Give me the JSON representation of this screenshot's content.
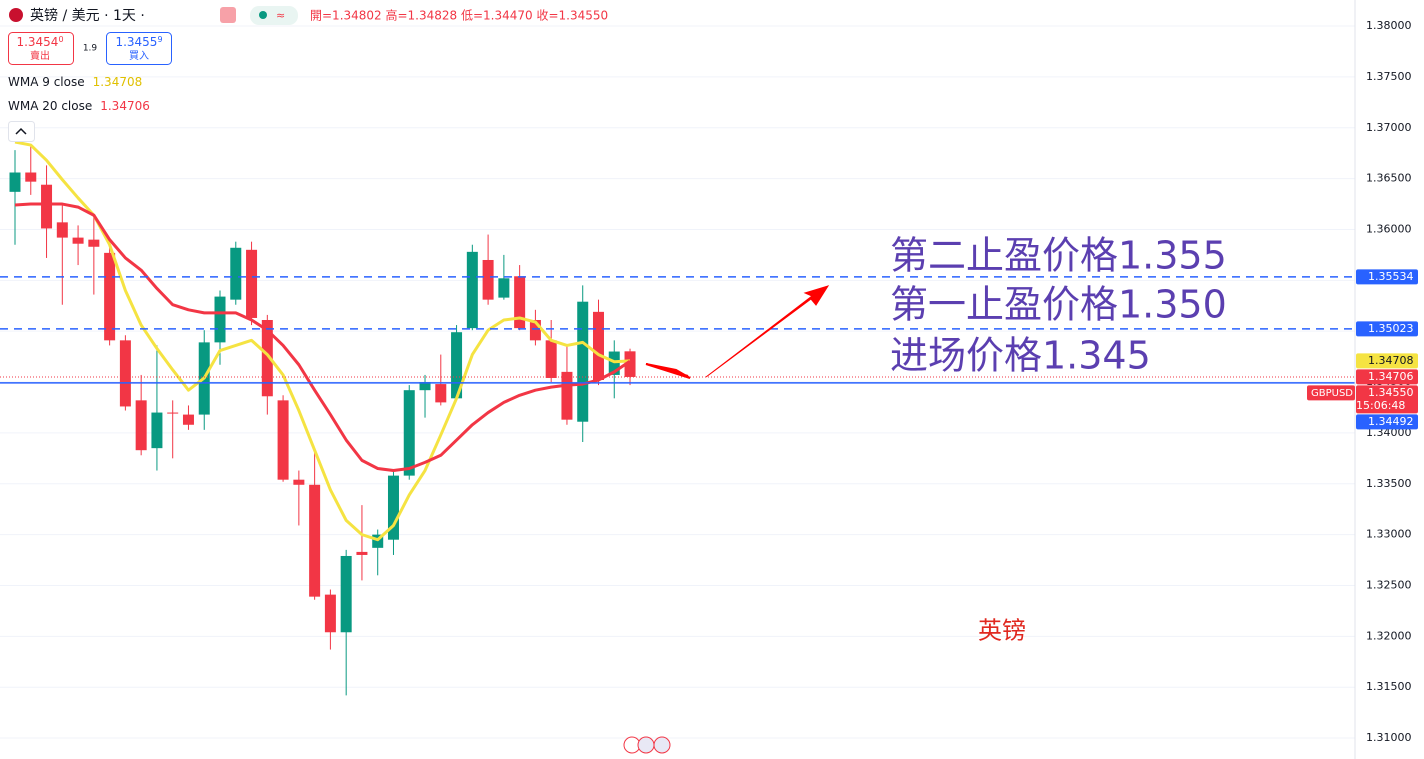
{
  "chart_data": {
    "type": "candlestick",
    "symbol_title": "英镑 / 美元 · 1天 ·",
    "ohlc_text": "開=1.34802  高=1.34828  低=1.34470  收=1.34550",
    "sell": {
      "price": "1.3454",
      "digit": "0",
      "label": "賣出"
    },
    "spread": "1.9",
    "buy": {
      "price": "1.3455",
      "digit": "9",
      "label": "買入"
    },
    "ylim": [
      1.30794,
      1.38256
    ],
    "yticks": [
      {
        "value": 1.31,
        "label": "1.31000"
      },
      {
        "value": 1.315,
        "label": "1.31500"
      },
      {
        "value": 1.32,
        "label": "1.32000"
      },
      {
        "value": 1.325,
        "label": "1.32500"
      },
      {
        "value": 1.33,
        "label": "1.33000"
      },
      {
        "value": 1.335,
        "label": "1.33500"
      },
      {
        "value": 1.34,
        "label": "1.34000"
      },
      {
        "value": 1.345,
        "label": "1.34500"
      },
      {
        "value": 1.35,
        "label": "1.35000"
      },
      {
        "value": 1.355,
        "label": "1.35500"
      },
      {
        "value": 1.36,
        "label": "1.36000"
      },
      {
        "value": 1.365,
        "label": "1.36500"
      },
      {
        "value": 1.37,
        "label": "1.37000"
      },
      {
        "value": 1.375,
        "label": "1.37500"
      },
      {
        "value": 1.38,
        "label": "1.38000"
      }
    ],
    "grid": true,
    "up_color": "#089981",
    "down_color": "#f23645",
    "open": [
      1.3637,
      1.3656,
      1.3644,
      1.3607,
      1.3592,
      1.359,
      1.3577,
      1.3491,
      1.3432,
      1.3385,
      1.342,
      1.3418,
      1.3418,
      1.3489,
      1.3531,
      1.358,
      1.3511,
      1.3432,
      1.3354,
      1.3349,
      1.3241,
      1.3204,
      1.3283,
      1.3287,
      1.3295,
      1.3358,
      1.3442,
      1.3448,
      1.3434,
      1.3503,
      1.357,
      1.3533,
      1.3554,
      1.3511,
      1.3491,
      1.346,
      1.3411,
      1.3519,
      1.3457,
      1.34802
    ],
    "high": [
      1.3678,
      1.3683,
      1.3663,
      1.3624,
      1.3604,
      1.3614,
      1.3585,
      1.3496,
      1.3457,
      1.3486,
      1.3432,
      1.3427,
      1.3501,
      1.354,
      1.3588,
      1.3588,
      1.3516,
      1.3437,
      1.3363,
      1.3383,
      1.3246,
      1.3285,
      1.3329,
      1.3305,
      1.3363,
      1.3447,
      1.3457,
      1.3477,
      1.3506,
      1.3585,
      1.3595,
      1.3575,
      1.3565,
      1.3521,
      1.3511,
      1.3486,
      1.3545,
      1.3531,
      1.3491,
      1.34828
    ],
    "low": [
      1.3585,
      1.3634,
      1.3572,
      1.3526,
      1.3565,
      1.3536,
      1.3486,
      1.3422,
      1.3378,
      1.3363,
      1.3375,
      1.3403,
      1.3403,
      1.3467,
      1.3526,
      1.3506,
      1.3418,
      1.3352,
      1.3309,
      1.3236,
      1.3187,
      1.3142,
      1.3255,
      1.326,
      1.328,
      1.3354,
      1.3415,
      1.3427,
      1.3432,
      1.3501,
      1.3526,
      1.3531,
      1.3501,
      1.3486,
      1.345,
      1.3408,
      1.3391,
      1.3447,
      1.3434,
      1.3447
    ],
    "close": [
      1.3656,
      1.3647,
      1.3601,
      1.3592,
      1.3586,
      1.3583,
      1.3491,
      1.3426,
      1.3383,
      1.342,
      1.3419,
      1.3408,
      1.3489,
      1.3534,
      1.3582,
      1.3513,
      1.3436,
      1.3354,
      1.3349,
      1.3239,
      1.3204,
      1.3279,
      1.328,
      1.33,
      1.3358,
      1.3442,
      1.345,
      1.343,
      1.3499,
      1.3578,
      1.3531,
      1.3552,
      1.3503,
      1.3491,
      1.3454,
      1.3413,
      1.3529,
      1.3452,
      1.348,
      1.3455
    ],
    "series": [
      {
        "name": "WMA 9 close",
        "color": "#f5e342",
        "tag_text": "#131722",
        "values": [
          1.3686,
          1.3683,
          1.3668,
          1.3649,
          1.3631,
          1.3614,
          1.3585,
          1.354,
          1.3506,
          1.3483,
          1.3462,
          1.3442,
          1.3454,
          1.3481,
          1.3486,
          1.3491,
          1.3477,
          1.3457,
          1.3422,
          1.3383,
          1.3344,
          1.3314,
          1.33,
          1.3295,
          1.3309,
          1.3339,
          1.3363,
          1.3398,
          1.3434,
          1.3477,
          1.3501,
          1.3511,
          1.3513,
          1.3509,
          1.3491,
          1.3486,
          1.3489,
          1.3477,
          1.347,
          1.34708
        ]
      },
      {
        "name": "WMA 20 close",
        "color": "#f23645",
        "tag_text": "#ffffff",
        "values": [
          1.3624,
          1.3625,
          1.3625,
          1.3625,
          1.3622,
          1.3614,
          1.359,
          1.3572,
          1.356,
          1.3542,
          1.3526,
          1.3521,
          1.3518,
          1.3518,
          1.3518,
          1.3511,
          1.3501,
          1.3486,
          1.3467,
          1.3442,
          1.3418,
          1.3393,
          1.3373,
          1.3365,
          1.3363,
          1.3365,
          1.3371,
          1.3378,
          1.3393,
          1.3408,
          1.342,
          1.343,
          1.3437,
          1.3442,
          1.3445,
          1.3447,
          1.3448,
          1.3452,
          1.346,
          1.34706
        ]
      }
    ],
    "levels": [
      {
        "value": 1.35534,
        "color": "#2962ff",
        "style": "dashed"
      },
      {
        "value": 1.35023,
        "color": "#2962ff",
        "style": "dashed"
      },
      {
        "value": 1.34492,
        "color": "#2962ff",
        "style": "solid"
      }
    ],
    "last_price": {
      "value": 1.3455,
      "label": "1.34550",
      "symbol": "GBPUSD",
      "countdown": "15:06:48",
      "color": "#f23645"
    },
    "annotations": [
      "第二止盈价格1.355",
      "第一止盈价格1.350",
      "进场价格1.345"
    ],
    "watermark": "英镑"
  }
}
